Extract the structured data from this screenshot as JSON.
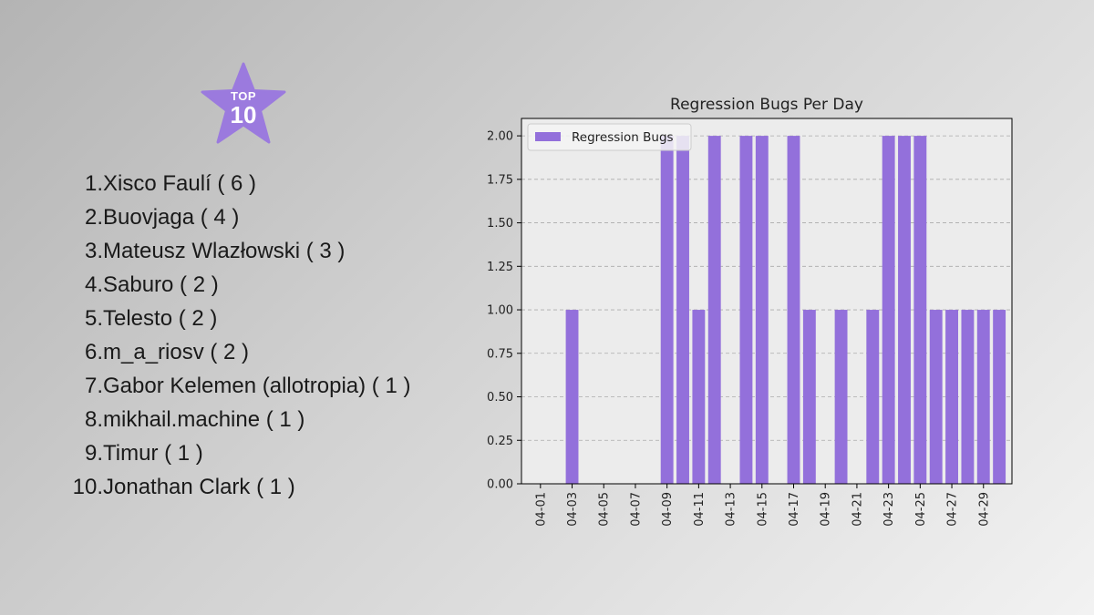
{
  "badge": {
    "top_label": "TOP",
    "number": "10",
    "color": "#9b7ade"
  },
  "ranking": [
    {
      "rank": "1.",
      "name": "Xisco Faulí ( 6 )"
    },
    {
      "rank": "2.",
      "name": "Buovjaga ( 4 )"
    },
    {
      "rank": "3.",
      "name": "Mateusz Wlazłowski ( 3 )"
    },
    {
      "rank": "4.",
      "name": "Saburo ( 2 )"
    },
    {
      "rank": "5.",
      "name": "Telesto ( 2 )"
    },
    {
      "rank": "6.",
      "name": "m_a_riosv ( 2 )"
    },
    {
      "rank": "7.",
      "name": "Gabor Kelemen (allotropia) ( 1 )"
    },
    {
      "rank": "8.",
      "name": "mikhail.machine ( 1 )"
    },
    {
      "rank": "9.",
      "name": "Timur ( 1 )"
    },
    {
      "rank": "10.",
      "name": "Jonathan Clark ( 1 )"
    }
  ],
  "chart_data": {
    "type": "bar",
    "title": "Regression Bugs Per Day",
    "xlabel": "",
    "ylabel": "",
    "legend": {
      "label": "Regression Bugs",
      "placement": "top-left"
    },
    "bar_color": "#9370db",
    "ylim": [
      0,
      2.1
    ],
    "y_ticks": [
      0,
      0.25,
      0.5,
      0.75,
      1.0,
      1.25,
      1.5,
      1.75,
      2.0
    ],
    "y_tick_labels": [
      "0.00",
      "0.25",
      "0.50",
      "0.75",
      "1.00",
      "1.25",
      "1.50",
      "1.75",
      "2.00"
    ],
    "grid": "y dashed",
    "x_tick_labels": [
      "04-01",
      "04-03",
      "04-05",
      "04-07",
      "04-09",
      "04-11",
      "04-13",
      "04-15",
      "04-17",
      "04-19",
      "04-21",
      "04-23",
      "04-25",
      "04-27",
      "04-29"
    ],
    "categories": [
      "04-01",
      "04-02",
      "04-03",
      "04-04",
      "04-05",
      "04-06",
      "04-07",
      "04-08",
      "04-09",
      "04-10",
      "04-11",
      "04-12",
      "04-13",
      "04-14",
      "04-15",
      "04-16",
      "04-17",
      "04-18",
      "04-19",
      "04-20",
      "04-21",
      "04-22",
      "04-23",
      "04-24",
      "04-25",
      "04-26",
      "04-27",
      "04-28",
      "04-29",
      "04-30"
    ],
    "values": [
      0,
      0,
      1,
      0,
      0,
      0,
      0,
      0,
      2,
      2,
      1,
      2,
      0,
      2,
      2,
      0,
      2,
      1,
      0,
      1,
      0,
      1,
      2,
      2,
      2,
      1,
      1,
      1,
      1,
      1
    ]
  }
}
